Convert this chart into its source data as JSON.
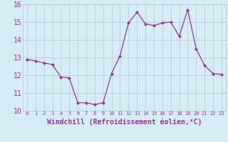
{
  "x": [
    0,
    1,
    2,
    3,
    4,
    5,
    6,
    7,
    8,
    9,
    10,
    11,
    12,
    13,
    14,
    15,
    16,
    17,
    18,
    19,
    20,
    21,
    22,
    23
  ],
  "y": [
    12.9,
    12.8,
    12.7,
    12.6,
    11.9,
    11.85,
    10.45,
    10.45,
    10.35,
    10.45,
    12.1,
    13.1,
    14.95,
    15.55,
    14.9,
    14.8,
    14.95,
    15.0,
    14.2,
    15.7,
    13.5,
    12.55,
    12.1,
    12.05
  ],
  "ylim": [
    10,
    16
  ],
  "xlim": [
    -0.5,
    23.5
  ],
  "yticks": [
    10,
    11,
    12,
    13,
    14,
    15,
    16
  ],
  "xticks": [
    0,
    1,
    2,
    3,
    4,
    5,
    6,
    7,
    8,
    9,
    10,
    11,
    12,
    13,
    14,
    15,
    16,
    17,
    18,
    19,
    20,
    21,
    22,
    23
  ],
  "xlabel": "Windchill (Refroidissement éolien,°C)",
  "line_color": "#993399",
  "marker": "D",
  "marker_size": 2.5,
  "bg_color": "#d5edf5",
  "grid_color": "#b0c8d8",
  "tick_color": "#993399",
  "label_color": "#993399",
  "ytick_fontsize": 7,
  "xtick_fontsize": 5.0,
  "xlabel_fontsize": 7
}
